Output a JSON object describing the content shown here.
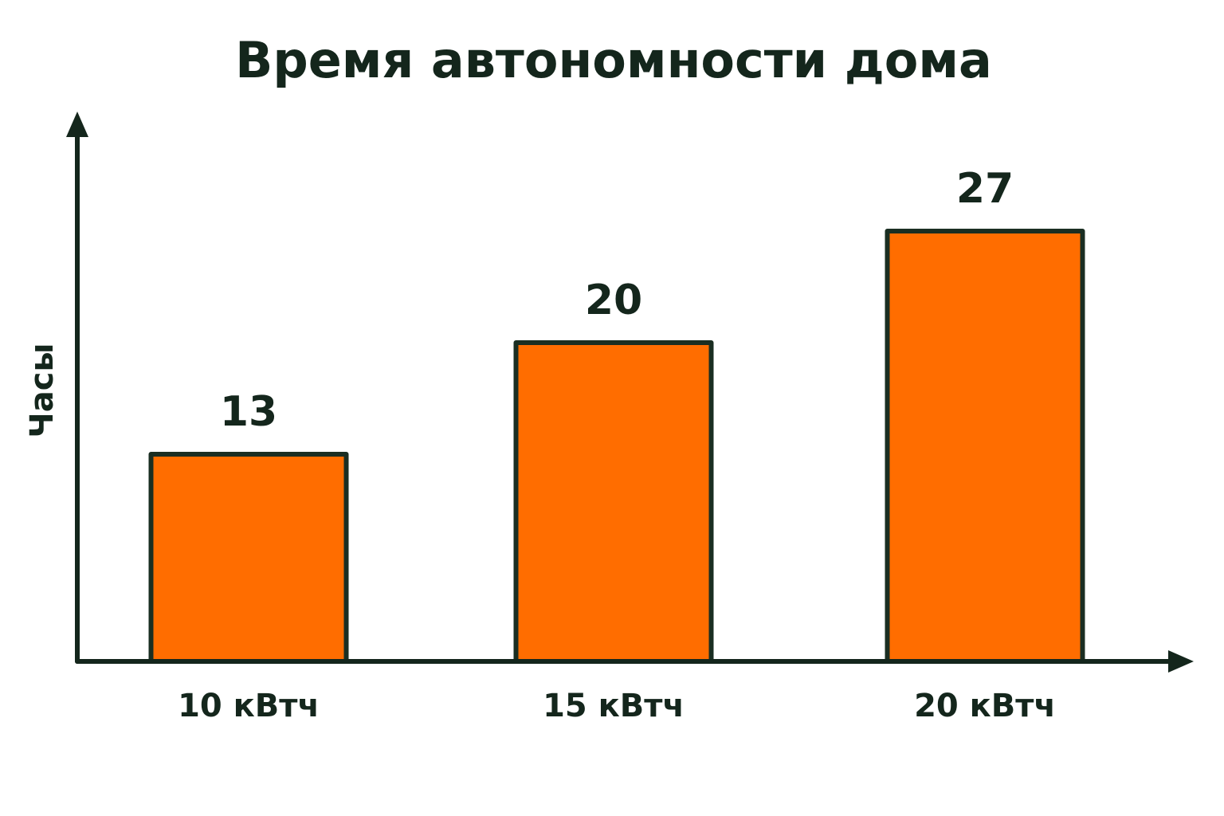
{
  "chart_data": {
    "type": "bar",
    "title": "Время автономности дома",
    "y_label": "Часы",
    "categories": [
      "10 кВтч",
      "15 кВтч",
      "20 кВтч"
    ],
    "values": [
      13,
      20,
      27
    ],
    "color": "#ff6d00",
    "ylim": [
      0,
      30
    ]
  }
}
